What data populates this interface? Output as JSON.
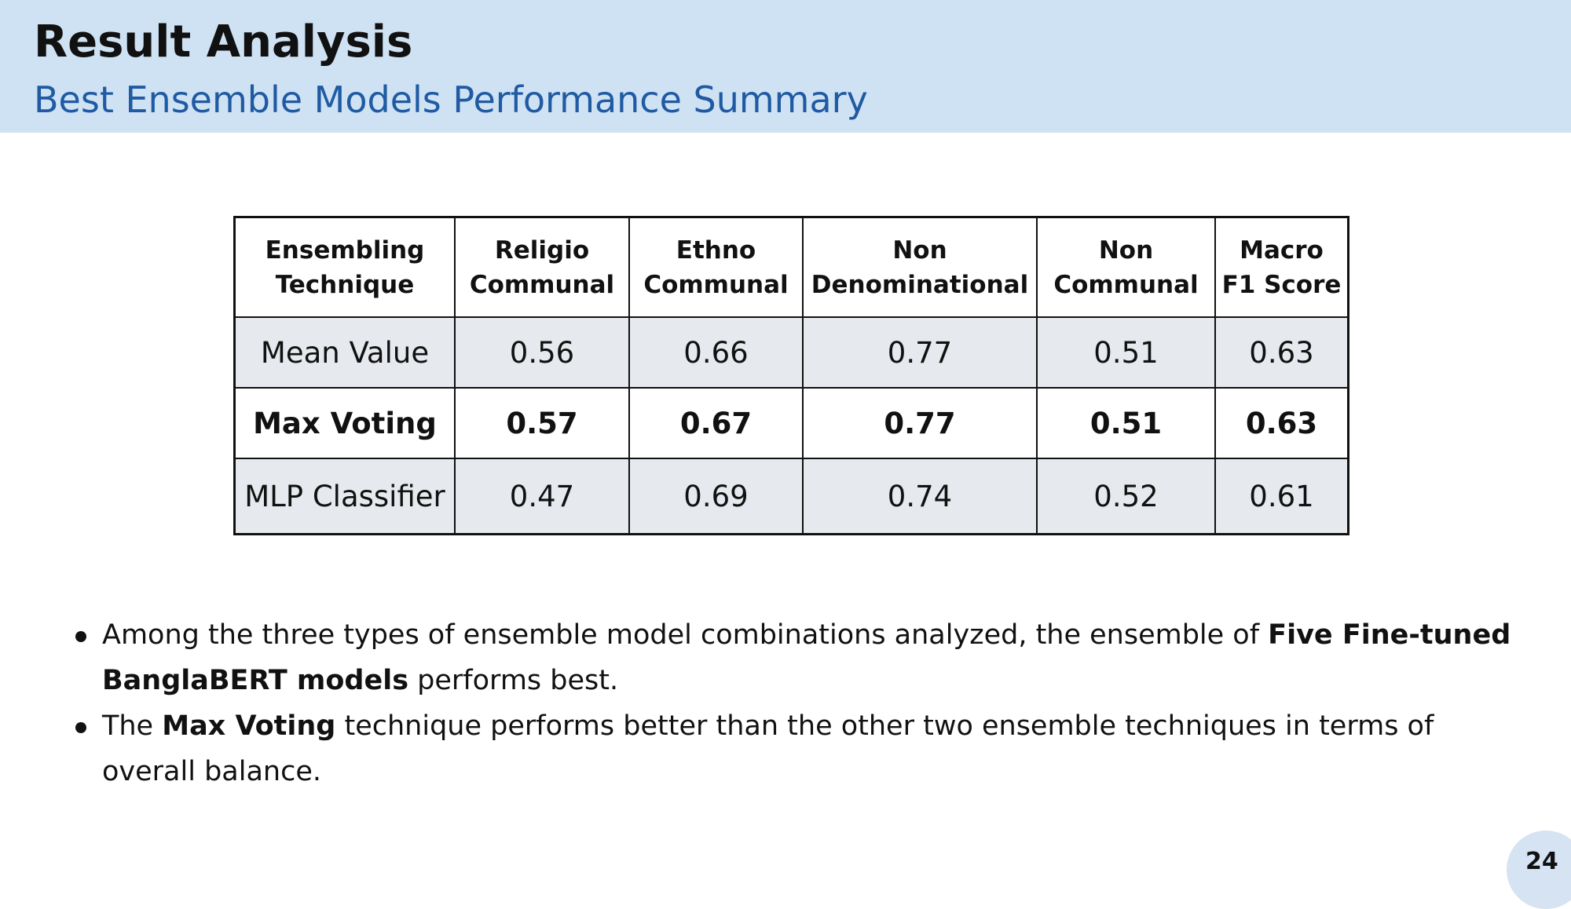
{
  "header": {
    "title": "Result Analysis",
    "subtitle": "Best Ensemble Models Performance Summary",
    "background_color": "#cfe2f3",
    "subtitle_color": "#1f5aa3"
  },
  "table": {
    "columns": [
      [
        "Ensembling",
        "Technique"
      ],
      [
        "Religio",
        "Communal"
      ],
      [
        "Ethno",
        "Communal"
      ],
      [
        "Non",
        "Denominational"
      ],
      [
        "Non",
        "Communal"
      ],
      [
        "Macro",
        "F1 Score"
      ]
    ],
    "rows": [
      [
        "Mean Value",
        "0.56",
        "0.66",
        "0.77",
        "0.51",
        "0.63"
      ],
      [
        "Max Voting",
        "0.57",
        "0.67",
        "0.77",
        "0.51",
        "0.63"
      ],
      [
        "MLP Classifier",
        "0.47",
        "0.69",
        "0.74",
        "0.52",
        "0.61"
      ]
    ],
    "highlighted_row": "Max Voting"
  },
  "bullets": [
    {
      "p1": "Among the three types of ensemble model combinations analyzed, the ensemble of ",
      "b1": "Five Fine-tuned BanglaBERT models",
      "p2": " performs best."
    },
    {
      "p1": "The ",
      "b1": "Max Voting",
      "p2": " technique performs better than the other two ensemble techniques in terms of overall balance."
    }
  ],
  "page_number": "24"
}
